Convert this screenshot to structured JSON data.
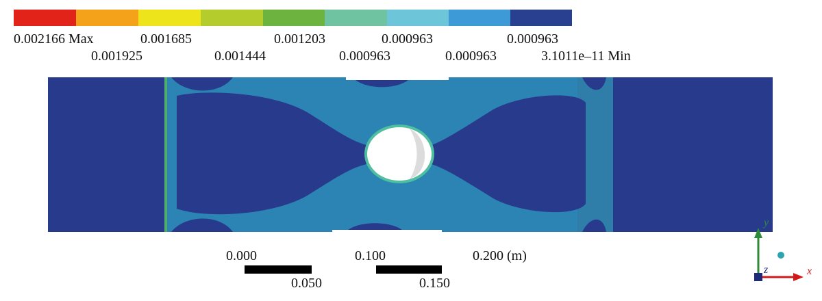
{
  "legend": {
    "labels": [
      "0.002166 Max",
      "0.001925",
      "0.001685",
      "0.001444",
      "0.001203",
      "0.000963",
      "0.000963",
      "0.000963",
      "0.000963",
      "3.1011e–11 Min"
    ]
  },
  "scale_bar": {
    "labels": [
      "0.000",
      "0.050",
      "0.100",
      "0.150",
      "0.200 (m)"
    ]
  },
  "triad": {
    "x": "x",
    "y": "y",
    "z": "z"
  }
}
